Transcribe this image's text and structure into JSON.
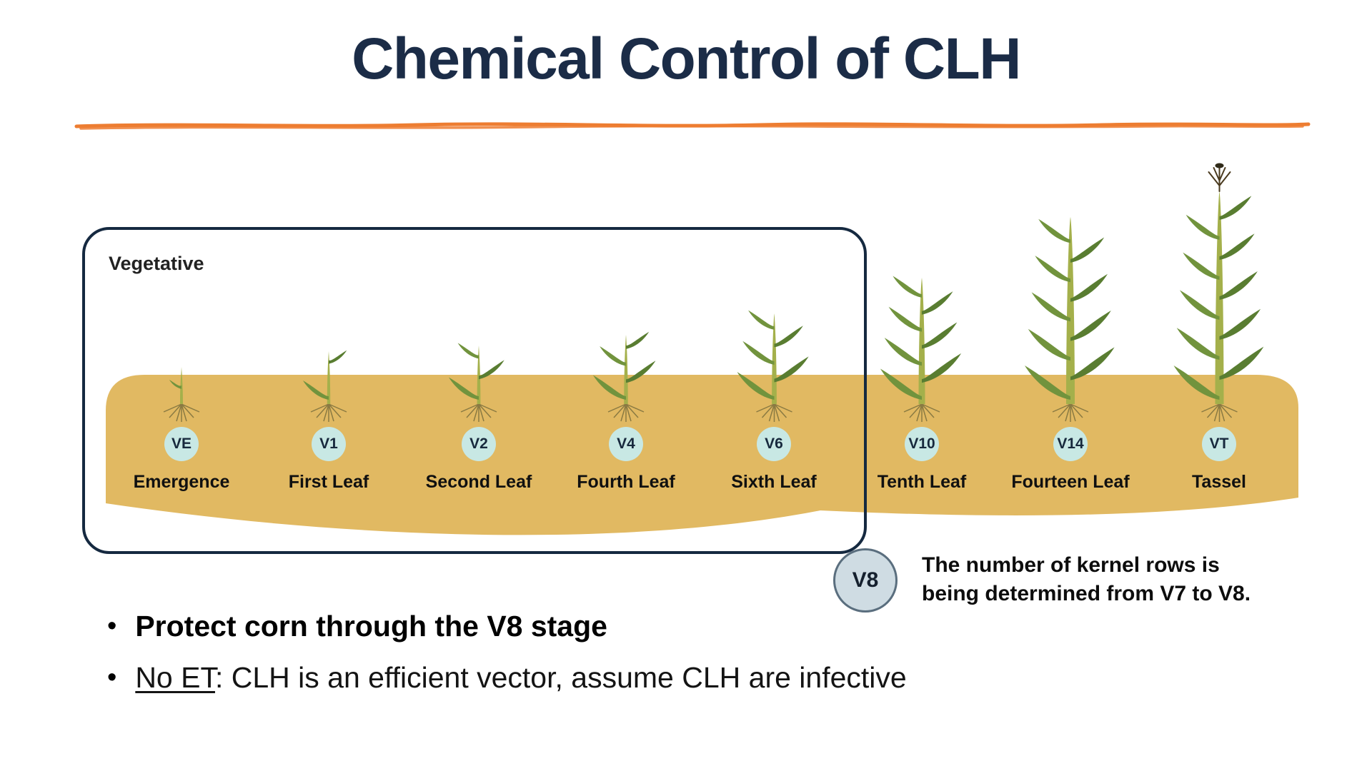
{
  "slide": {
    "title": "Chemical Control of CLH"
  },
  "diagram": {
    "section_label": "Vegetative",
    "stages": [
      {
        "code": "VE",
        "label": "Emergence"
      },
      {
        "code": "V1",
        "label": "First Leaf"
      },
      {
        "code": "V2",
        "label": "Second Leaf"
      },
      {
        "code": "V4",
        "label": "Fourth Leaf"
      },
      {
        "code": "V6",
        "label": "Sixth Leaf"
      },
      {
        "code": "V10",
        "label": "Tenth Leaf"
      },
      {
        "code": "V14",
        "label": "Fourteen Leaf"
      },
      {
        "code": "VT",
        "label": "Tassel"
      }
    ],
    "callout": {
      "code": "V8",
      "line1": "The number of kernel rows is",
      "line2": "being determined from V7 to V8."
    }
  },
  "bullets": [
    {
      "text": "Protect corn through the V8 stage"
    },
    {
      "underlined": "No ET",
      "rest": ": CLH is an efficient vector, assume CLH are infective"
    }
  ],
  "colors": {
    "title": "#1B2C47",
    "accent_line": "#ED7D31",
    "soil": "#E1B962",
    "stage_circle": "#C8E8E4",
    "box_border": "#152940",
    "callout_circle_fill": "#CFDCE3",
    "callout_circle_border": "#5A6E7E",
    "leaf_green_light": "#71933D",
    "leaf_green_dark": "#597D31"
  }
}
